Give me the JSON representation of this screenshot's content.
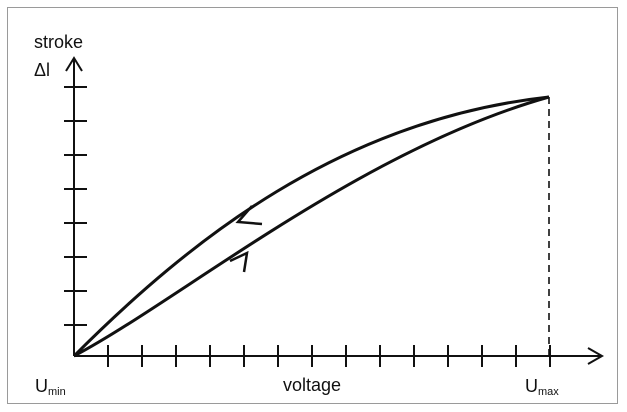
{
  "diagram": {
    "y_axis_label_line1": "stroke",
    "y_axis_label_line2": "Δl",
    "x_axis_label": "voltage",
    "x_min_label": {
      "base": "U",
      "sub": "min"
    },
    "x_max_label": {
      "base": "U",
      "sub": "max"
    },
    "curves": [
      {
        "role": "loading",
        "direction": "up"
      },
      {
        "role": "unloading",
        "direction": "down"
      }
    ],
    "colors": {
      "ink": "#111111",
      "frame": "#9a9a9a"
    }
  }
}
